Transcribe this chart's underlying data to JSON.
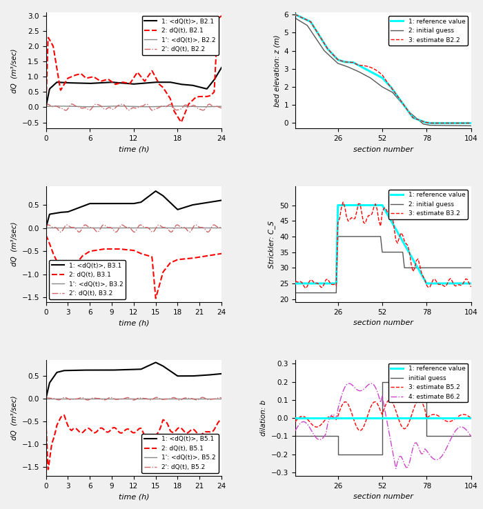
{
  "fig_width": 7.0,
  "fig_height": 7.38,
  "dpi": 100,
  "background_color": "#f0f0f0",
  "ax1": {
    "ylabel": "dQ  (m³/sec)",
    "xlabel": "time (h)",
    "xlim": [
      0,
      24
    ],
    "ylim": [
      -0.7,
      3.1
    ],
    "yticks": [
      -0.5,
      0.0,
      0.5,
      1.0,
      1.5,
      2.0,
      2.5,
      3.0
    ],
    "xticks": [
      0,
      6,
      12,
      18,
      24
    ],
    "legend": [
      "1: <dQ(t)>, B2.1",
      "2: dQ(t), B2.1",
      "1': <dQ(t)>, B2.2",
      "2': dQ(t), B2.2"
    ]
  },
  "ax2": {
    "ylabel": "bed elevation: z (m)",
    "xlabel": "section number",
    "xlim": [
      1,
      104
    ],
    "ylim": [
      -0.3,
      6.1
    ],
    "yticks": [
      0.0,
      1.0,
      2.0,
      3.0,
      4.0,
      5.0,
      6.0
    ],
    "xticks": [
      26,
      52,
      78,
      104
    ],
    "legend": [
      "1: reference value",
      "2: initial guess",
      "3: estimate B2.2"
    ]
  },
  "ax3": {
    "ylabel": "dQ  (m³/sec)",
    "xlabel": "time (h)",
    "xlim": [
      0,
      24
    ],
    "ylim": [
      -1.6,
      0.9
    ],
    "yticks": [
      -1.5,
      -1.0,
      -0.5,
      0.0,
      0.5
    ],
    "xticks": [
      0,
      3,
      6,
      9,
      12,
      15,
      18,
      21,
      24
    ],
    "legend": [
      "1: <dQ(t)>, B3.1",
      "2: dQ(t), B3.1",
      "1': <dQ(t)>, B3.2",
      "2': dQ(t), B3.2"
    ]
  },
  "ax4": {
    "ylabel": "Strickler: C_S",
    "xlabel": "section number",
    "xlim": [
      1,
      104
    ],
    "ylim": [
      19,
      56
    ],
    "yticks": [
      20,
      25,
      30,
      35,
      40,
      45,
      50
    ],
    "xticks": [
      26,
      52,
      78,
      104
    ],
    "legend": [
      "1: reference value",
      "2: initial guess",
      "3: estimate B3.2"
    ]
  },
  "ax5": {
    "ylabel": "dQ  (m³/sec)",
    "xlabel": "time (h)",
    "xlim": [
      0,
      24
    ],
    "ylim": [
      -1.7,
      0.85
    ],
    "yticks": [
      -1.5,
      -1.0,
      -0.5,
      0.0,
      0.5
    ],
    "xticks": [
      0,
      3,
      6,
      9,
      12,
      15,
      18,
      21,
      24
    ],
    "legend": [
      "1: <dQ(t)>, B5.1",
      "2: dQ(t), B5.1",
      "1': <dQ(t)>, B5.2",
      "2': dQ(t), B5.2"
    ]
  },
  "ax6": {
    "ylabel": "dilation: b",
    "xlabel": "section number",
    "xlim": [
      1,
      104
    ],
    "ylim": [
      -0.32,
      0.32
    ],
    "yticks": [
      -0.3,
      -0.2,
      -0.1,
      0.0,
      0.1,
      0.2,
      0.3
    ],
    "xticks": [
      26,
      52,
      78,
      104
    ],
    "legend": [
      "1: reference value",
      "initial guess",
      "3: estimate B5.2",
      "4: estimate B6.2"
    ]
  }
}
